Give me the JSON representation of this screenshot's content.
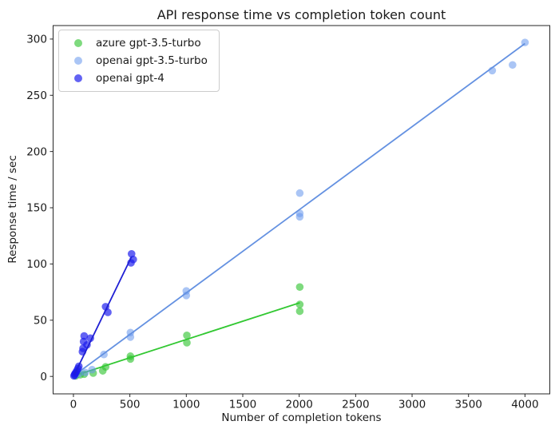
{
  "chart_data": {
    "type": "scatter",
    "title": "API response time vs completion token count",
    "xlabel": "Number of completion tokens",
    "ylabel": "Response time / sec",
    "grid": false,
    "legend_position": "upper left",
    "xlim": [
      -180,
      4220
    ],
    "ylim": [
      -15.5,
      312
    ],
    "xticks": [
      0,
      500,
      1000,
      1500,
      2000,
      2500,
      3000,
      3500,
      4000
    ],
    "xtick_labels": [
      "0",
      "500",
      "1000",
      "1500",
      "2000",
      "2500",
      "3000",
      "3500",
      "4000"
    ],
    "yticks": [
      0,
      50,
      100,
      150,
      200,
      250,
      300
    ],
    "ytick_labels": [
      "0",
      "50",
      "100",
      "150",
      "200",
      "250",
      "300"
    ],
    "series": [
      {
        "name": "azure gpt-3.5-turbo",
        "marker_color": "rgba(46,196,46,0.62)",
        "line_color": "#32c832",
        "points": [
          [
            20,
            0.5
          ],
          [
            60,
            1.5
          ],
          [
            95,
            2
          ],
          [
            175,
            3
          ],
          [
            260,
            5
          ],
          [
            285,
            8.5
          ],
          [
            505,
            15.5
          ],
          [
            505,
            18
          ],
          [
            1005,
            30
          ],
          [
            1005,
            36.5
          ],
          [
            2005,
            58
          ],
          [
            2005,
            64
          ],
          [
            2005,
            79.5
          ]
        ],
        "trend": [
          [
            20,
            1
          ],
          [
            2005,
            65.5
          ]
        ]
      },
      {
        "name": "openai gpt-3.5-turbo",
        "marker_color": "rgba(100,149,237,0.55)",
        "line_color": "#6491e1",
        "points": [
          [
            15,
            1
          ],
          [
            50,
            2.5
          ],
          [
            105,
            3.5
          ],
          [
            165,
            6
          ],
          [
            270,
            19.5
          ],
          [
            505,
            35
          ],
          [
            505,
            39
          ],
          [
            1000,
            72
          ],
          [
            1000,
            76
          ],
          [
            2005,
            142
          ],
          [
            2005,
            145
          ],
          [
            2005,
            163
          ],
          [
            3710,
            272
          ],
          [
            3890,
            277
          ],
          [
            4000,
            297
          ]
        ],
        "trend": [
          [
            15,
            1.5
          ],
          [
            4000,
            296
          ]
        ]
      },
      {
        "name": "openai gpt-4",
        "marker_color": "rgba(25,25,238,0.68)",
        "line_color": "#1f1fd4",
        "points": [
          [
            5,
            0.5
          ],
          [
            10,
            1.5
          ],
          [
            15,
            2.5
          ],
          [
            22,
            3.5
          ],
          [
            30,
            5
          ],
          [
            40,
            7
          ],
          [
            48,
            9
          ],
          [
            80,
            22
          ],
          [
            85,
            25
          ],
          [
            90,
            31
          ],
          [
            95,
            36
          ],
          [
            120,
            28
          ],
          [
            150,
            34
          ],
          [
            285,
            62
          ],
          [
            305,
            57
          ],
          [
            510,
            101
          ],
          [
            515,
            109
          ],
          [
            530,
            104
          ]
        ],
        "trend": [
          [
            8,
            1.5
          ],
          [
            515,
            106.5
          ]
        ]
      }
    ]
  }
}
